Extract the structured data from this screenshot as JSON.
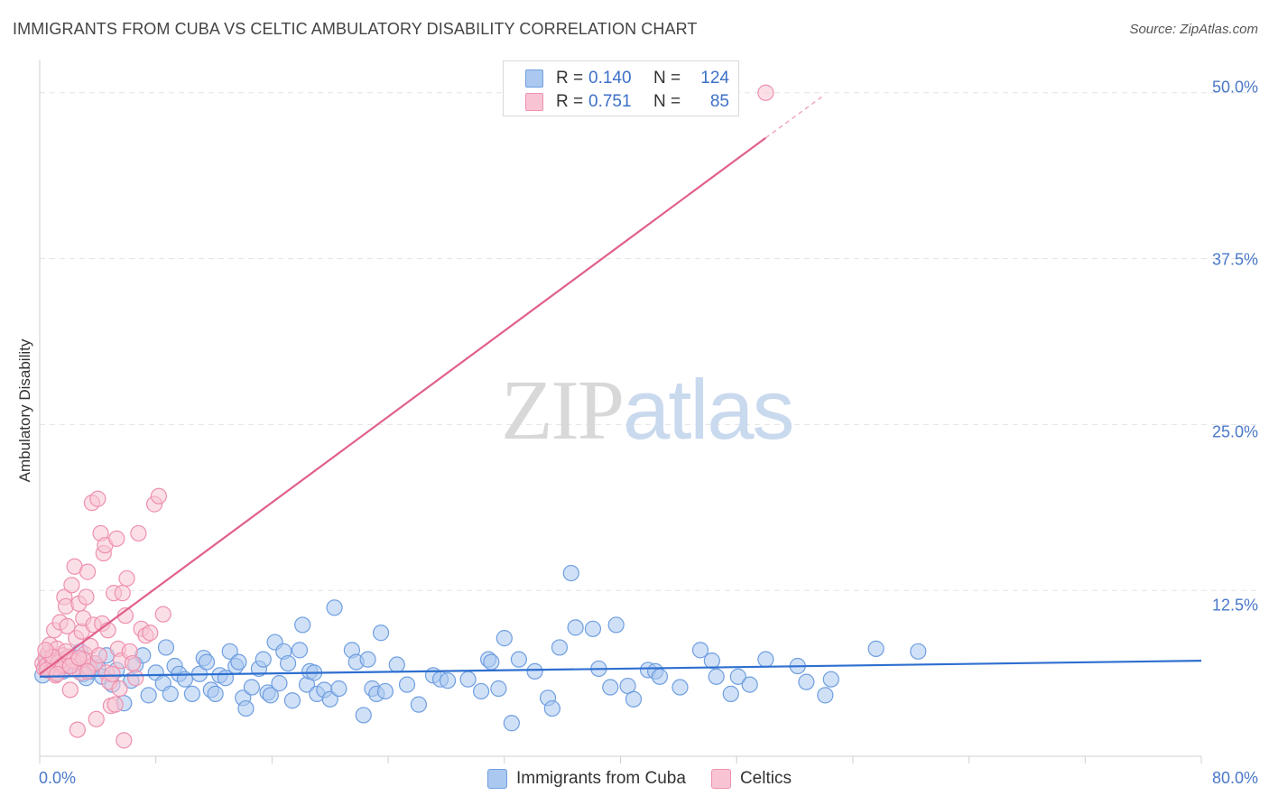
{
  "title": "IMMIGRANTS FROM CUBA VS CELTIC AMBULATORY DISABILITY CORRELATION CHART",
  "source": "Source: ZipAtlas.com",
  "watermark": {
    "zip": "ZIP",
    "atlas": "atlas"
  },
  "legend": {
    "rows": [
      {
        "r_label": "R =",
        "r_value": "0.140",
        "n_label": "N =",
        "n_value": "124",
        "color": "#aac8f0",
        "border": "#6f9ee0"
      },
      {
        "r_label": "R =",
        "r_value": "0.751",
        "n_label": "N =",
        "n_value": "85",
        "color": "#f8c4d4",
        "border": "#ee90ae"
      }
    ]
  },
  "bottom_legend": [
    {
      "label": "Immigrants from Cuba",
      "color": "#aac8f0",
      "border": "#6f9ee0"
    },
    {
      "label": "Celtics",
      "color": "#f8c4d4",
      "border": "#ee90ae"
    }
  ],
  "chart_data": {
    "type": "scatter",
    "ylabel": "Ambulatory Disability",
    "xlabel": "",
    "xlim": [
      0,
      80
    ],
    "ylim": [
      0,
      52.5
    ],
    "x_tick_labels": [
      "0.0%",
      "80.0%"
    ],
    "y_ticks": [
      {
        "value": 12.5,
        "label": "12.5%"
      },
      {
        "value": 25,
        "label": "25.0%"
      },
      {
        "value": 37.5,
        "label": "37.5%"
      },
      {
        "value": 50,
        "label": "50.0%"
      }
    ],
    "grid": true,
    "legend_position": "top-center",
    "series": [
      {
        "name": "Immigrants from Cuba",
        "color": "#6f9ee0",
        "fill": "#aac8f0",
        "trend": {
          "x": [
            0,
            80
          ],
          "y": [
            6.0,
            7.2
          ],
          "color": "#2e6fd0"
        },
        "points": [
          [
            0.2,
            6.1
          ],
          [
            0.4,
            6.8
          ],
          [
            0.5,
            7.3
          ],
          [
            0.6,
            6.5
          ],
          [
            0.7,
            7.0
          ],
          [
            0.8,
            6.6
          ],
          [
            0.9,
            7.1
          ],
          [
            1.0,
            6.9
          ],
          [
            1.1,
            6.3
          ],
          [
            1.2,
            7.4
          ],
          [
            1.3,
            6.7
          ],
          [
            1.5,
            7.2
          ],
          [
            1.6,
            6.4
          ],
          [
            1.8,
            7.0
          ],
          [
            2.0,
            6.8
          ],
          [
            2.2,
            7.5
          ],
          [
            2.4,
            6.6
          ],
          [
            2.6,
            7.1
          ],
          [
            2.8,
            7.9
          ],
          [
            3.0,
            6.2
          ],
          [
            3.2,
            5.9
          ],
          [
            3.5,
            6.4
          ],
          [
            3.8,
            7.0
          ],
          [
            4.0,
            6.7
          ],
          [
            4.3,
            6.0
          ],
          [
            4.6,
            7.6
          ],
          [
            5.0,
            5.4
          ],
          [
            5.3,
            6.5
          ],
          [
            5.8,
            4.0
          ],
          [
            6.3,
            5.7
          ],
          [
            6.6,
            6.9
          ],
          [
            7.1,
            7.6
          ],
          [
            7.5,
            4.6
          ],
          [
            8.0,
            6.3
          ],
          [
            8.5,
            5.5
          ],
          [
            8.7,
            8.2
          ],
          [
            9.0,
            4.7
          ],
          [
            9.3,
            6.8
          ],
          [
            9.6,
            6.2
          ],
          [
            10.0,
            5.8
          ],
          [
            10.5,
            4.7
          ],
          [
            11.0,
            6.2
          ],
          [
            11.3,
            7.4
          ],
          [
            11.5,
            7.1
          ],
          [
            11.8,
            5.0
          ],
          [
            12.1,
            4.7
          ],
          [
            12.4,
            6.1
          ],
          [
            12.8,
            5.9
          ],
          [
            13.1,
            7.9
          ],
          [
            13.5,
            6.8
          ],
          [
            13.7,
            7.1
          ],
          [
            14.0,
            4.4
          ],
          [
            14.2,
            3.6
          ],
          [
            14.6,
            5.2
          ],
          [
            15.1,
            6.6
          ],
          [
            15.4,
            7.3
          ],
          [
            15.7,
            4.8
          ],
          [
            15.9,
            4.6
          ],
          [
            16.2,
            8.6
          ],
          [
            16.5,
            5.5
          ],
          [
            16.8,
            7.9
          ],
          [
            17.1,
            7.0
          ],
          [
            17.4,
            4.2
          ],
          [
            17.9,
            8.0
          ],
          [
            18.1,
            9.9
          ],
          [
            18.4,
            5.4
          ],
          [
            18.6,
            6.4
          ],
          [
            18.9,
            6.3
          ],
          [
            19.1,
            4.7
          ],
          [
            19.6,
            5.0
          ],
          [
            20.0,
            4.3
          ],
          [
            20.3,
            11.2
          ],
          [
            20.6,
            5.1
          ],
          [
            21.5,
            8.0
          ],
          [
            21.8,
            7.1
          ],
          [
            22.3,
            3.1
          ],
          [
            22.6,
            7.3
          ],
          [
            22.9,
            5.1
          ],
          [
            23.2,
            4.7
          ],
          [
            23.5,
            9.3
          ],
          [
            23.8,
            4.9
          ],
          [
            24.6,
            6.9
          ],
          [
            25.3,
            5.4
          ],
          [
            26.1,
            3.9
          ],
          [
            27.1,
            6.1
          ],
          [
            27.6,
            5.8
          ],
          [
            28.1,
            5.7
          ],
          [
            29.5,
            5.8
          ],
          [
            30.4,
            4.9
          ],
          [
            30.9,
            7.3
          ],
          [
            31.1,
            7.1
          ],
          [
            31.6,
            5.1
          ],
          [
            32.0,
            8.9
          ],
          [
            32.5,
            2.5
          ],
          [
            33.0,
            7.3
          ],
          [
            34.1,
            6.4
          ],
          [
            35.0,
            4.4
          ],
          [
            35.3,
            3.6
          ],
          [
            35.8,
            8.2
          ],
          [
            36.6,
            13.8
          ],
          [
            36.9,
            9.7
          ],
          [
            38.1,
            9.6
          ],
          [
            38.5,
            6.6
          ],
          [
            39.3,
            5.2
          ],
          [
            39.7,
            9.9
          ],
          [
            40.5,
            5.3
          ],
          [
            40.9,
            4.3
          ],
          [
            41.9,
            6.5
          ],
          [
            42.4,
            6.4
          ],
          [
            42.7,
            6.0
          ],
          [
            44.1,
            5.2
          ],
          [
            45.5,
            8.0
          ],
          [
            46.3,
            7.2
          ],
          [
            46.6,
            6.0
          ],
          [
            47.6,
            4.7
          ],
          [
            48.1,
            6.0
          ],
          [
            48.9,
            5.4
          ],
          [
            50.0,
            7.3
          ],
          [
            52.2,
            6.8
          ],
          [
            52.8,
            5.6
          ],
          [
            54.1,
            4.6
          ],
          [
            54.5,
            5.8
          ],
          [
            57.6,
            8.1
          ],
          [
            60.5,
            7.9
          ]
        ]
      },
      {
        "name": "Celtics",
        "color": "#ee90ae",
        "fill": "#f8c4d4",
        "trend": {
          "x": [
            0,
            50
          ],
          "y": [
            6.2,
            46.6
          ],
          "dashed_to": {
            "x": 54,
            "y": 49.8
          },
          "color": "#e0608a"
        },
        "points": [
          [
            0.2,
            7.0
          ],
          [
            0.3,
            6.6
          ],
          [
            0.4,
            7.4
          ],
          [
            0.5,
            6.9
          ],
          [
            0.6,
            7.8
          ],
          [
            0.7,
            8.4
          ],
          [
            0.8,
            6.4
          ],
          [
            0.9,
            7.2
          ],
          [
            1.0,
            9.5
          ],
          [
            1.1,
            6.1
          ],
          [
            1.2,
            8.1
          ],
          [
            1.3,
            7.0
          ],
          [
            1.4,
            10.1
          ],
          [
            1.5,
            6.8
          ],
          [
            1.6,
            7.6
          ],
          [
            1.7,
            12.0
          ],
          [
            1.8,
            11.3
          ],
          [
            1.9,
            9.8
          ],
          [
            2.0,
            7.3
          ],
          [
            2.1,
            5.0
          ],
          [
            2.2,
            12.9
          ],
          [
            2.3,
            6.6
          ],
          [
            2.4,
            14.3
          ],
          [
            2.5,
            8.9
          ],
          [
            2.6,
            7.1
          ],
          [
            2.7,
            11.5
          ],
          [
            2.8,
            6.3
          ],
          [
            2.9,
            9.4
          ],
          [
            3.0,
            10.4
          ],
          [
            3.1,
            7.7
          ],
          [
            3.2,
            12.0
          ],
          [
            3.3,
            13.9
          ],
          [
            3.4,
            6.7
          ],
          [
            3.5,
            8.3
          ],
          [
            3.6,
            19.1
          ],
          [
            3.7,
            9.9
          ],
          [
            3.8,
            7.0
          ],
          [
            3.9,
            2.8
          ],
          [
            4.0,
            19.4
          ],
          [
            4.1,
            7.6
          ],
          [
            4.2,
            16.8
          ],
          [
            4.3,
            10.0
          ],
          [
            4.4,
            15.3
          ],
          [
            4.5,
            15.9
          ],
          [
            4.6,
            6.3
          ],
          [
            4.7,
            9.5
          ],
          [
            4.8,
            5.6
          ],
          [
            4.9,
            3.8
          ],
          [
            5.0,
            6.2
          ],
          [
            5.1,
            12.3
          ],
          [
            5.2,
            3.9
          ],
          [
            5.3,
            16.4
          ],
          [
            5.4,
            8.1
          ],
          [
            5.5,
            5.1
          ],
          [
            5.6,
            7.2
          ],
          [
            5.7,
            12.3
          ],
          [
            5.8,
            1.2
          ],
          [
            5.9,
            10.6
          ],
          [
            6.0,
            13.4
          ],
          [
            6.2,
            7.9
          ],
          [
            6.4,
            7.0
          ],
          [
            6.6,
            5.9
          ],
          [
            6.8,
            16.8
          ],
          [
            7.0,
            9.6
          ],
          [
            7.3,
            9.1
          ],
          [
            7.6,
            9.3
          ],
          [
            7.9,
            19.0
          ],
          [
            8.2,
            19.6
          ],
          [
            8.5,
            10.7
          ],
          [
            1.0,
            6.6
          ],
          [
            1.3,
            7.1
          ],
          [
            1.6,
            6.9
          ],
          [
            2.0,
            7.5
          ],
          [
            2.3,
            7.2
          ],
          [
            2.6,
            2.0
          ],
          [
            3.0,
            7.3
          ],
          [
            3.3,
            6.4
          ],
          [
            0.5,
            6.5
          ],
          [
            0.9,
            7.5
          ],
          [
            1.2,
            6.2
          ],
          [
            1.8,
            7.9
          ],
          [
            2.1,
            6.8
          ],
          [
            2.7,
            7.4
          ],
          [
            0.4,
            8.0
          ],
          [
            50.0,
            50.0
          ]
        ]
      }
    ]
  }
}
